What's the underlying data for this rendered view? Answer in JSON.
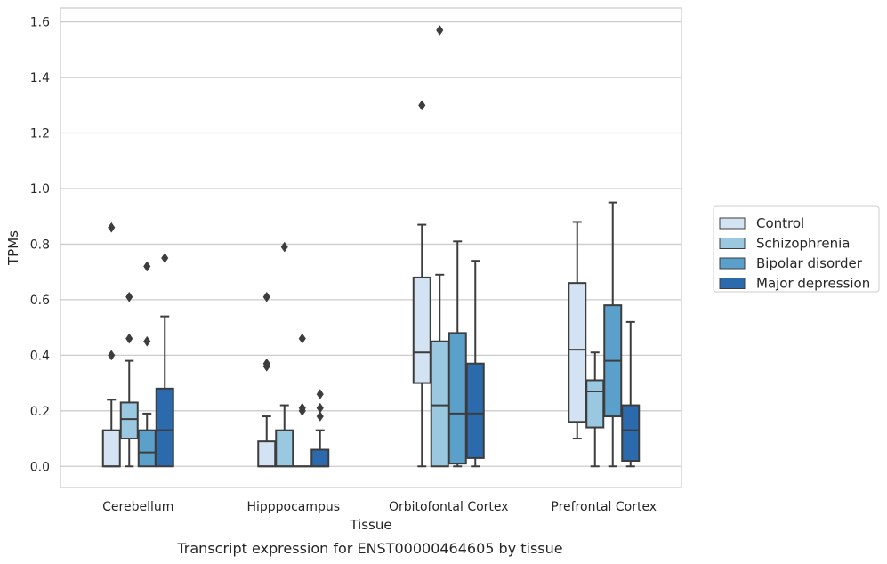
{
  "caption": "Transcript expression for ENST00000464605 by tissue",
  "chart_data": {
    "type": "box",
    "xlabel": "Tissue",
    "ylabel": "TPMs",
    "ylim": [
      -0.076,
      1.65
    ],
    "yticks": [
      0.0,
      0.2,
      0.4,
      0.6,
      0.8,
      1.0,
      1.2,
      1.4,
      1.6
    ],
    "ytick_labels": [
      "0.0",
      "0.2",
      "0.4",
      "0.6",
      "0.8",
      "1.0",
      "1.2",
      "1.4",
      "1.6"
    ],
    "grid": true,
    "legend_position": "right",
    "categories": [
      "Cerebellum",
      "Hipppocampus",
      "Orbitofontal Cortex",
      "Prefrontal Cortex"
    ],
    "series": [
      {
        "name": "Control",
        "color": "#d3e3f3",
        "boxes": [
          {
            "whislo": 0.0,
            "q1": 0.0,
            "med": 0.0,
            "q3": 0.13,
            "whishi": 0.24,
            "fliers": [
              0.4,
              0.86
            ]
          },
          {
            "whislo": 0.0,
            "q1": 0.0,
            "med": 0.0,
            "q3": 0.09,
            "whishi": 0.18,
            "fliers": [
              0.36,
              0.37,
              0.61
            ]
          },
          {
            "whislo": 0.0,
            "q1": 0.3,
            "med": 0.41,
            "q3": 0.68,
            "whishi": 0.87,
            "fliers": [
              1.3
            ]
          },
          {
            "whislo": 0.1,
            "q1": 0.16,
            "med": 0.42,
            "q3": 0.66,
            "whishi": 0.88,
            "fliers": []
          }
        ]
      },
      {
        "name": "Schizophrenia",
        "color": "#9ac8e0",
        "boxes": [
          {
            "whislo": 0.0,
            "q1": 0.1,
            "med": 0.17,
            "q3": 0.23,
            "whishi": 0.38,
            "fliers": [
              0.46,
              0.61
            ]
          },
          {
            "whislo": 0.0,
            "q1": 0.0,
            "med": 0.0,
            "q3": 0.13,
            "whishi": 0.22,
            "fliers": [
              0.79
            ]
          },
          {
            "whislo": 0.0,
            "q1": 0.0,
            "med": 0.22,
            "q3": 0.45,
            "whishi": 0.69,
            "fliers": [
              1.57
            ]
          },
          {
            "whislo": 0.0,
            "q1": 0.14,
            "med": 0.27,
            "q3": 0.31,
            "whishi": 0.41,
            "fliers": []
          }
        ]
      },
      {
        "name": "Bipolar disorder",
        "color": "#5b9fcb",
        "boxes": [
          {
            "whislo": 0.0,
            "q1": 0.0,
            "med": 0.05,
            "q3": 0.13,
            "whishi": 0.19,
            "fliers": [
              0.45,
              0.72
            ]
          },
          {
            "whislo": 0.0,
            "q1": 0.0,
            "med": 0.0,
            "q3": 0.0,
            "whishi": 0.0,
            "fliers": [
              0.2,
              0.21,
              0.46
            ]
          },
          {
            "whislo": 0.0,
            "q1": 0.01,
            "med": 0.19,
            "q3": 0.48,
            "whishi": 0.81,
            "fliers": []
          },
          {
            "whislo": 0.0,
            "q1": 0.18,
            "med": 0.38,
            "q3": 0.58,
            "whishi": 0.95,
            "fliers": []
          }
        ]
      },
      {
        "name": "Major depression",
        "color": "#2a6aad",
        "boxes": [
          {
            "whislo": 0.0,
            "q1": 0.0,
            "med": 0.13,
            "q3": 0.28,
            "whishi": 0.54,
            "fliers": [
              0.75
            ]
          },
          {
            "whislo": 0.0,
            "q1": 0.0,
            "med": 0.0,
            "q3": 0.06,
            "whishi": 0.13,
            "fliers": [
              0.18,
              0.21,
              0.26
            ]
          },
          {
            "whislo": 0.0,
            "q1": 0.03,
            "med": 0.19,
            "q3": 0.37,
            "whishi": 0.74,
            "fliers": []
          },
          {
            "whislo": 0.0,
            "q1": 0.02,
            "med": 0.13,
            "q3": 0.22,
            "whishi": 0.52,
            "fliers": []
          }
        ]
      }
    ]
  }
}
